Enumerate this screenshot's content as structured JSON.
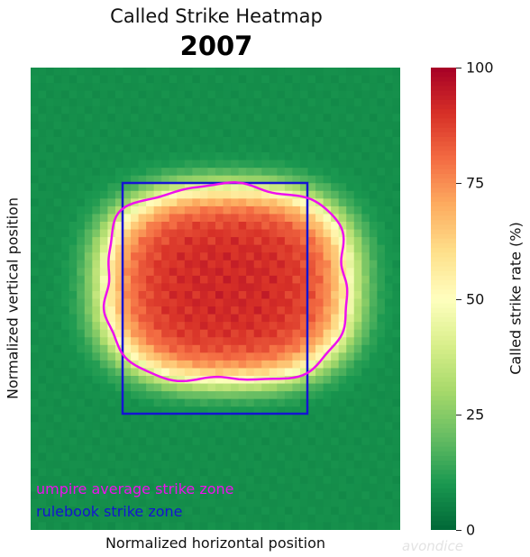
{
  "title": "Called Strike Heatmap",
  "subtitle": "2007",
  "watermark": "avondice",
  "colors": {
    "umpire_zone": "#ee10ee",
    "rulebook_zone": "#1414d2",
    "colormap": "RdYlGn_r"
  },
  "chart_data": {
    "type": "heatmap",
    "title": "Called Strike Heatmap",
    "subtitle": "2007",
    "xlabel": "Normalized horizontal position",
    "ylabel": "Normalized vertical position",
    "colorbar": {
      "label": "Called strike rate (%)",
      "min": 0,
      "max": 100,
      "ticks": [
        0,
        25,
        50,
        75,
        100
      ]
    },
    "peak_rate": 95,
    "edge_rate": 8,
    "legend": [
      {
        "label": "umpire average strike zone",
        "color": "#ee10ee"
      },
      {
        "label": "rulebook strike zone",
        "color": "#1414d2"
      }
    ],
    "legend_position": "bottom-left"
  }
}
